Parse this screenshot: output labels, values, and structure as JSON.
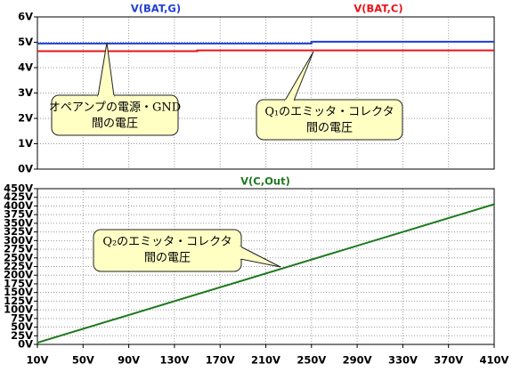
{
  "chart_data": [
    {
      "type": "line",
      "x": [
        10,
        150,
        150,
        250,
        250,
        410
      ],
      "series": [
        {
          "name": "V(BAT,G)",
          "color": "#1f3fd6",
          "values": [
            4.95,
            4.95,
            4.95,
            4.95,
            5.02,
            5.02
          ]
        },
        {
          "name": "V(BAT,C)",
          "color": "#e8141a",
          "values": [
            4.65,
            4.65,
            4.68,
            4.68,
            4.68,
            4.68
          ]
        }
      ],
      "xlim": [
        10,
        410
      ],
      "ylim": [
        0,
        6
      ],
      "yticks": [
        {
          "value": 0,
          "label": "0V"
        },
        {
          "value": 1,
          "label": "1V"
        },
        {
          "value": 2,
          "label": "2V"
        },
        {
          "value": 3,
          "label": "3V"
        },
        {
          "value": 4,
          "label": "4V"
        },
        {
          "value": 5,
          "label": "5V"
        },
        {
          "value": 6,
          "label": "6V"
        }
      ],
      "grid": true,
      "annotations": [
        {
          "lines": [
            "オペアンプの電源・GND",
            "間の電圧"
          ]
        },
        {
          "lines": [
            "Q₁のエミッタ・コレクタ",
            "間の電圧"
          ]
        }
      ]
    },
    {
      "type": "line",
      "x": [
        10,
        410
      ],
      "series": [
        {
          "name": "V(C,Out)",
          "color": "#1e7a1e",
          "values": [
            5,
            405
          ]
        }
      ],
      "xlim": [
        10,
        410
      ],
      "xticks": [
        {
          "value": 10,
          "label": "10V"
        },
        {
          "value": 50,
          "label": "50V"
        },
        {
          "value": 90,
          "label": "90V"
        },
        {
          "value": 130,
          "label": "130V"
        },
        {
          "value": 170,
          "label": "170V"
        },
        {
          "value": 210,
          "label": "210V"
        },
        {
          "value": 250,
          "label": "250V"
        },
        {
          "value": 290,
          "label": "290V"
        },
        {
          "value": 330,
          "label": "330V"
        },
        {
          "value": 370,
          "label": "370V"
        },
        {
          "value": 410,
          "label": "410V"
        }
      ],
      "ylim": [
        0,
        450
      ],
      "yticks": [
        {
          "value": 0,
          "label": "0V"
        },
        {
          "value": 25,
          "label": "25V"
        },
        {
          "value": 50,
          "label": "50V"
        },
        {
          "value": 75,
          "label": "75V"
        },
        {
          "value": 100,
          "label": "100V"
        },
        {
          "value": 125,
          "label": "125V"
        },
        {
          "value": 150,
          "label": "150V"
        },
        {
          "value": 175,
          "label": "175V"
        },
        {
          "value": 200,
          "label": "200V"
        },
        {
          "value": 225,
          "label": "225V"
        },
        {
          "value": 250,
          "label": "250V"
        },
        {
          "value": 275,
          "label": "275V"
        },
        {
          "value": 300,
          "label": "300V"
        },
        {
          "value": 325,
          "label": "325V"
        },
        {
          "value": 350,
          "label": "350V"
        },
        {
          "value": 375,
          "label": "375V"
        },
        {
          "value": 400,
          "label": "400V"
        },
        {
          "value": 425,
          "label": "425V"
        },
        {
          "value": 450,
          "label": "450V"
        }
      ],
      "grid": true,
      "annotations": [
        {
          "lines": [
            "Q₂のエミッタ・コレクタ",
            "間の電圧"
          ]
        }
      ]
    }
  ]
}
